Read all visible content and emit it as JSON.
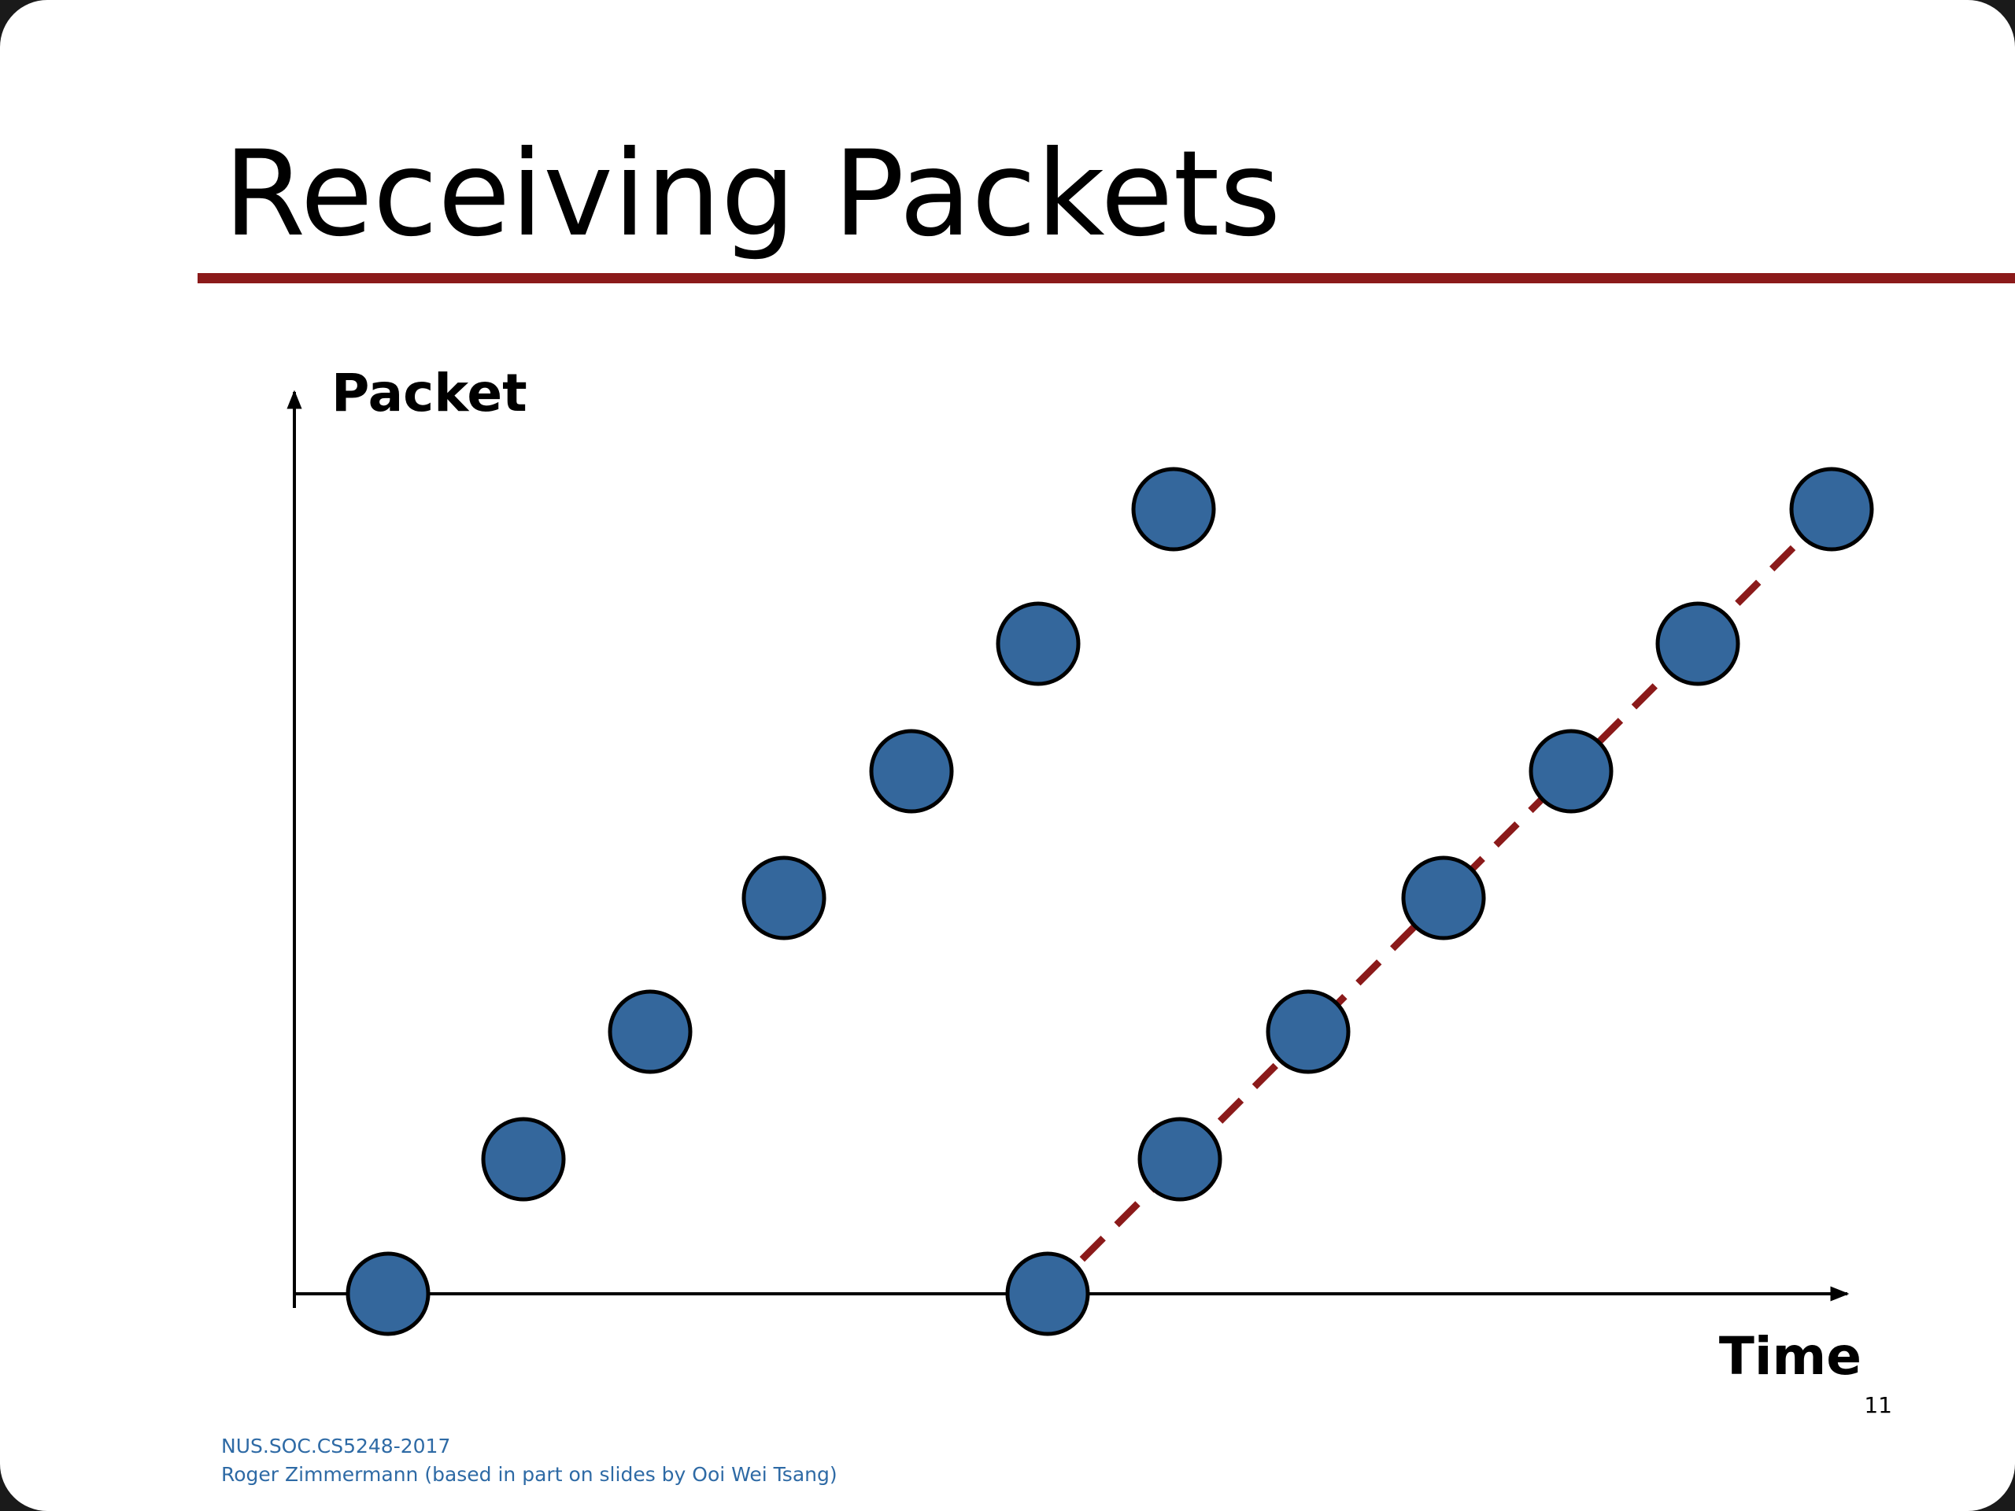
{
  "header": {
    "title": "Receiving Packets"
  },
  "diagram": {
    "y_axis_label": "Packet",
    "x_axis_label": "Time"
  },
  "footer": {
    "course": "NUS.SOC.CS5248-2017",
    "author": "Roger Zimmermann (based in part on slides by Ooi Wei Tsang)",
    "page_number": "11"
  }
}
